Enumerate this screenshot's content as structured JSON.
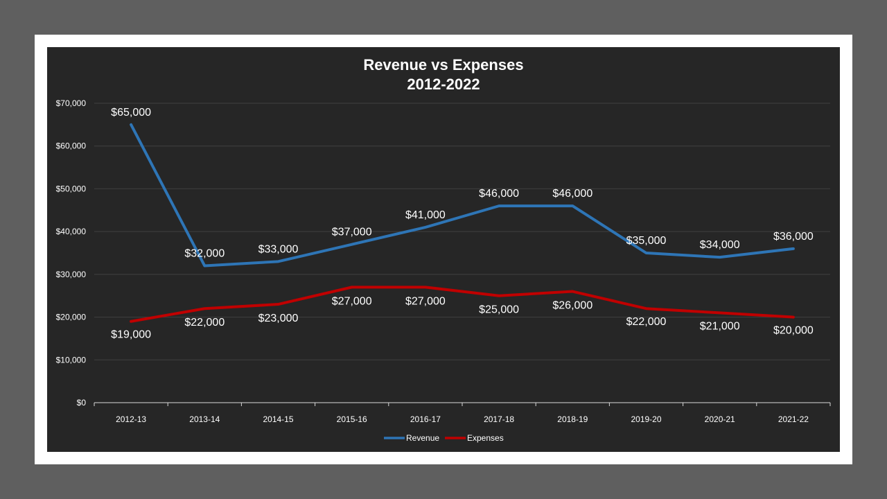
{
  "chart_data": {
    "type": "line",
    "title": "Revenue vs Expenses",
    "subtitle": "2012-2022",
    "categories": [
      "2012-13",
      "2013-14",
      "2014-15",
      "2015-16",
      "2016-17",
      "2017-18",
      "2018-19",
      "2019-20",
      "2020-21",
      "2021-22"
    ],
    "series": [
      {
        "name": "Revenue",
        "color": "#2e75b6",
        "values": [
          65000,
          32000,
          33000,
          37000,
          41000,
          46000,
          46000,
          35000,
          34000,
          36000
        ],
        "labels": [
          "$65,000",
          "$32,000",
          "$33,000",
          "$37,000",
          "$41,000",
          "$46,000",
          "$46,000",
          "$35,000",
          "$34,000",
          "$36,000"
        ]
      },
      {
        "name": "Expenses",
        "color": "#c00000",
        "values": [
          19000,
          22000,
          23000,
          27000,
          27000,
          25000,
          26000,
          22000,
          21000,
          20000
        ],
        "labels": [
          "$19,000",
          "$22,000",
          "$23,000",
          "$27,000",
          "$27,000",
          "$25,000",
          "$26,000",
          "$22,000",
          "$21,000",
          "$20,000"
        ]
      }
    ],
    "ylim": [
      0,
      70000
    ],
    "y_ticks": [
      0,
      10000,
      20000,
      30000,
      40000,
      50000,
      60000,
      70000
    ],
    "y_tick_labels": [
      "$0",
      "$10,000",
      "$20,000",
      "$30,000",
      "$40,000",
      "$50,000",
      "$60,000",
      "$70,000"
    ],
    "grid": true,
    "legend": "bottom",
    "xlabel": "",
    "ylabel": ""
  }
}
